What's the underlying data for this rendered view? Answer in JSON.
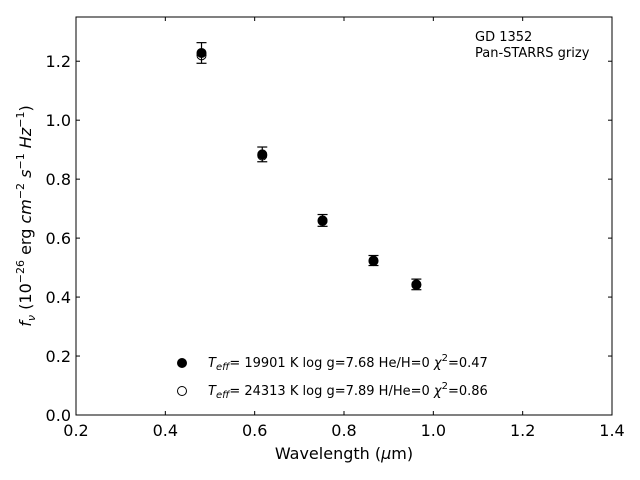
{
  "chart_data": {
    "type": "scatter",
    "title": "",
    "xlabel_parts": [
      "Wavelength (",
      "μ",
      "m)"
    ],
    "ylabel_parts": [
      "f",
      "ν",
      " (10",
      "−26",
      " erg ",
      "cm",
      "−2",
      " ",
      "s",
      "−1",
      " ",
      "Hz",
      "−1",
      ")"
    ],
    "xlim": [
      0.2,
      1.4
    ],
    "ylim": [
      0.0,
      1.35
    ],
    "xticks": [
      0.2,
      0.4,
      0.6,
      0.8,
      1.0,
      1.2,
      1.4
    ],
    "xtick_labels": [
      "0.2",
      "0.4",
      "0.6",
      "0.8",
      "1.0",
      "1.2",
      "1.4"
    ],
    "yticks": [
      0.0,
      0.2,
      0.4,
      0.6,
      0.8,
      1.0,
      1.2
    ],
    "ytick_labels": [
      "0.0",
      "0.2",
      "0.4",
      "0.6",
      "0.8",
      "1.0",
      "1.2"
    ],
    "grid": false,
    "annotation_lines": [
      "GD 1352",
      "Pan-STARRS grizy"
    ],
    "series": [
      {
        "marker": "filled-circle",
        "color": "#000000",
        "points": [
          {
            "x": 0.481,
            "y": 1.228,
            "err": 0.035
          },
          {
            "x": 0.617,
            "y": 0.884,
            "err": 0.025
          },
          {
            "x": 0.752,
            "y": 0.66,
            "err": 0.02
          },
          {
            "x": 0.866,
            "y": 0.524,
            "err": 0.017
          },
          {
            "x": 0.962,
            "y": 0.443,
            "err": 0.018
          }
        ]
      },
      {
        "marker": "open-circle",
        "color": "#000000",
        "points": [
          {
            "x": 0.481,
            "y": 1.22
          },
          {
            "x": 0.617,
            "y": 0.88
          },
          {
            "x": 0.752,
            "y": 0.658
          },
          {
            "x": 0.866,
            "y": 0.522
          },
          {
            "x": 0.962,
            "y": 0.441
          }
        ]
      }
    ],
    "legend": {
      "placement": "lower-center",
      "entries": [
        {
          "marker": "filled-circle",
          "teff_symbol": "T",
          "teff_sub": "eff",
          "teff_text": "= 19901 K  log g=7.68  He/H=0  ",
          "chi_symbol": "χ",
          "chi_sup": "2",
          "chi_text": "=0.47"
        },
        {
          "marker": "open-circle",
          "teff_symbol": "T",
          "teff_sub": "eff",
          "teff_text": "= 24313 K  log g=7.89  H/He=0  ",
          "chi_symbol": "χ",
          "chi_sup": "2",
          "chi_text": "=0.86"
        }
      ]
    }
  }
}
